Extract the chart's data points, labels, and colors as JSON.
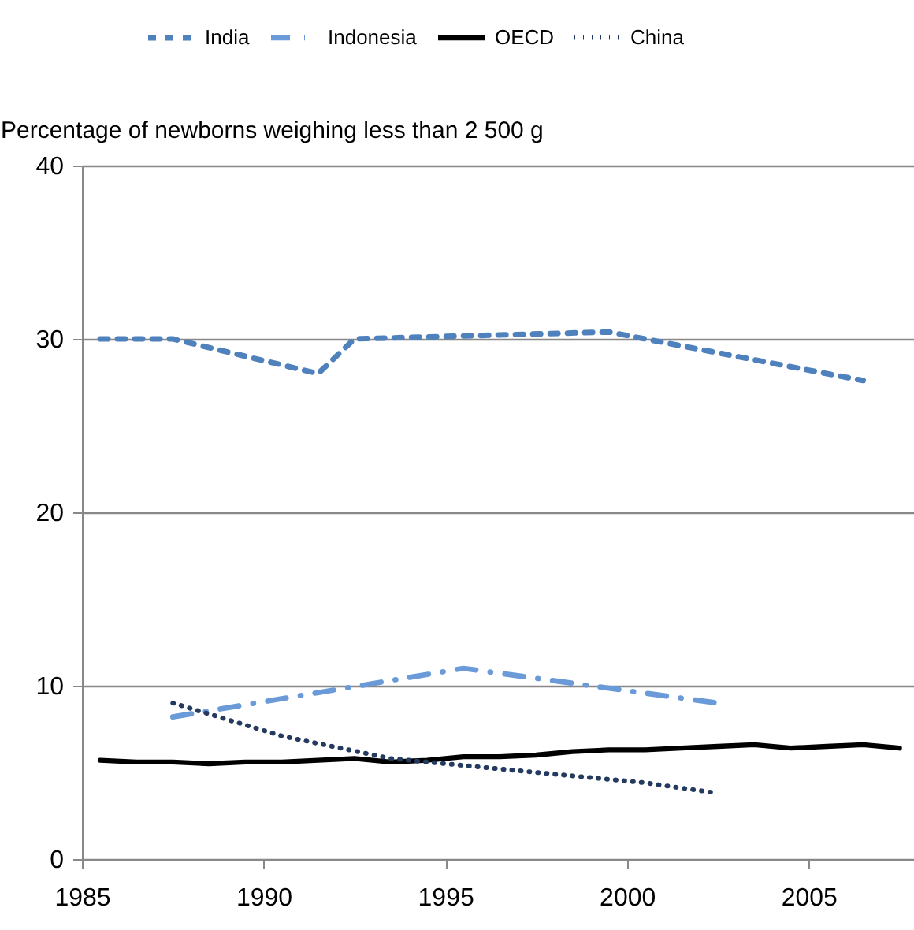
{
  "chart_data": {
    "type": "line",
    "ylabel": "Percentage of newborns weighing less than 2 500 g",
    "xlim": [
      1985,
      2007.9
    ],
    "xticks": [
      1985,
      1990,
      1995,
      2000,
      2005
    ],
    "ylim": [
      0,
      40
    ],
    "yticks": [
      0,
      10,
      20,
      30,
      40
    ],
    "grid": "y",
    "legend": "top",
    "marker": "none",
    "series": [
      {
        "name": "India",
        "color": "#4f81bd",
        "line_style": "dashed",
        "x": [
          1985.5,
          1987.5,
          1991.5,
          1992.5,
          1999.5,
          2006.5
        ],
        "values": [
          30,
          30,
          28,
          30,
          30.4,
          27.6
        ]
      },
      {
        "name": "Indonesia",
        "color": "#6a9bd8",
        "line_style": "dashdot",
        "x": [
          1987.5,
          1995.5,
          2002.5
        ],
        "values": [
          8.2,
          11.0,
          9.0
        ]
      },
      {
        "name": "OECD",
        "color": "#000000",
        "line_style": "solid",
        "x": [
          1985.5,
          1986.5,
          1987.5,
          1988.5,
          1989.5,
          1990.5,
          1991.5,
          1992.5,
          1993.5,
          1994.5,
          1995.5,
          1996.5,
          1997.5,
          1998.5,
          1999.5,
          2000.5,
          2001.5,
          2002.5,
          2003.5,
          2004.5,
          2005.5,
          2006.5,
          2007.5
        ],
        "values": [
          5.7,
          5.6,
          5.6,
          5.5,
          5.6,
          5.6,
          5.7,
          5.8,
          5.6,
          5.7,
          5.9,
          5.9,
          6.0,
          6.2,
          6.3,
          6.3,
          6.4,
          6.5,
          6.6,
          6.4,
          6.5,
          6.6,
          6.4
        ]
      },
      {
        "name": "China",
        "color": "#243a5e",
        "line_style": "dotted",
        "x": [
          1987.5,
          1990.5,
          1993.5,
          1997.5,
          2000.5,
          2002.5
        ],
        "values": [
          9.0,
          7.1,
          5.8,
          5.0,
          4.4,
          3.8
        ]
      }
    ]
  }
}
